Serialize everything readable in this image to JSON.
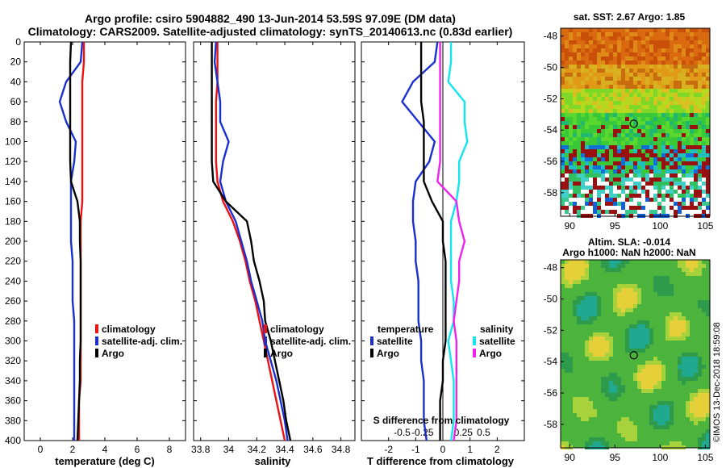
{
  "title": {
    "line1": "Argo profile: csiro 5904882_490 13-Jun-2014 53.59S 97.09E (DM data)",
    "line2": "Climatology: CARS2009. Satellite-adjusted climatology: synTS_20140613.nc (0.83d earlier)"
  },
  "colors": {
    "climatology": "#ee1111",
    "satellite": "#1a2fd0",
    "argo": "#000000",
    "s_satellite": "#11e6ee",
    "s_argo": "#ee22ee"
  },
  "depth_axis": {
    "ticks": [
      "0",
      "20",
      "40",
      "60",
      "80",
      "100",
      "120",
      "140",
      "160",
      "180",
      "200",
      "220",
      "240",
      "260",
      "280",
      "300",
      "320",
      "340",
      "360",
      "380",
      "400"
    ]
  },
  "chart_data": [
    {
      "type": "line",
      "name": "temperature",
      "xlabel": "temperature (deg C)",
      "xlim": [
        -1,
        9
      ],
      "ylim": [
        0,
        400
      ],
      "xticks": [
        0,
        2,
        4,
        6,
        8
      ],
      "xtick_labels": [
        "0",
        "2",
        "4",
        "6",
        "8"
      ],
      "legend": [
        "climatology",
        "satellite-adj. clim.",
        "Argo"
      ],
      "series": [
        {
          "name": "climatology",
          "color_key": "climatology",
          "x": [
            2.7,
            2.7,
            2.6,
            2.6,
            2.6,
            2.6,
            2.6,
            2.6,
            2.6,
            2.5,
            2.5,
            2.5,
            2.5,
            2.5,
            2.5,
            2.5,
            2.5,
            2.5,
            2.4,
            2.4,
            2.4
          ],
          "y": [
            0,
            20,
            40,
            60,
            80,
            100,
            120,
            140,
            160,
            180,
            200,
            220,
            240,
            260,
            280,
            300,
            320,
            340,
            360,
            380,
            400
          ]
        },
        {
          "name": "satellite-adj. clim.",
          "color_key": "satellite",
          "x": [
            2.6,
            2.5,
            1.6,
            1.2,
            1.6,
            2.2,
            2.1,
            1.9,
            1.9,
            1.9,
            1.9,
            2.0,
            2.0,
            2.0,
            2.1,
            2.1,
            2.1,
            2.1,
            2.1,
            2.1,
            2.1
          ],
          "y": [
            0,
            20,
            40,
            60,
            80,
            100,
            120,
            140,
            160,
            180,
            200,
            220,
            240,
            260,
            280,
            300,
            320,
            340,
            360,
            380,
            400
          ]
        },
        {
          "name": "Argo",
          "color_key": "argo",
          "x": [
            1.9,
            1.85,
            1.85,
            1.85,
            1.85,
            1.85,
            1.85,
            1.9,
            2.3,
            2.45,
            2.45,
            2.5,
            2.5,
            2.5,
            2.5,
            2.5,
            2.45,
            2.45,
            2.4,
            2.35,
            2.3
          ],
          "y": [
            0,
            20,
            40,
            60,
            80,
            100,
            120,
            140,
            160,
            180,
            200,
            220,
            240,
            260,
            280,
            300,
            320,
            340,
            360,
            380,
            400
          ]
        }
      ]
    },
    {
      "type": "line",
      "name": "salinity",
      "xlabel": "salinity",
      "xlim": [
        33.75,
        34.9
      ],
      "ylim": [
        0,
        400
      ],
      "xticks": [
        33.8,
        34.0,
        34.2,
        34.4,
        34.6,
        34.8
      ],
      "xtick_labels": [
        "33.8",
        "34",
        "34.2",
        "34.4",
        "34.6",
        "34.8"
      ],
      "legend": [
        "climatology",
        "satellite-adj. clim.",
        "Argo"
      ],
      "series": [
        {
          "name": "climatology",
          "color_key": "climatology",
          "x": [
            33.92,
            33.92,
            33.92,
            33.91,
            33.91,
            33.91,
            33.91,
            33.92,
            33.96,
            34.03,
            34.08,
            34.12,
            34.15,
            34.19,
            34.22,
            34.25,
            34.28,
            34.31,
            34.34,
            34.37,
            34.4
          ],
          "y": [
            0,
            20,
            40,
            60,
            80,
            100,
            120,
            140,
            160,
            180,
            200,
            220,
            240,
            260,
            280,
            300,
            320,
            340,
            360,
            380,
            400
          ]
        },
        {
          "name": "satellite-adj. clim.",
          "color_key": "satellite",
          "x": [
            33.91,
            33.9,
            33.92,
            33.94,
            33.94,
            34.0,
            33.96,
            33.94,
            33.98,
            34.05,
            34.09,
            34.13,
            34.16,
            34.2,
            34.24,
            34.26,
            34.3,
            34.34,
            34.37,
            34.4,
            34.42
          ],
          "y": [
            0,
            20,
            40,
            60,
            80,
            100,
            120,
            140,
            160,
            180,
            200,
            220,
            240,
            260,
            280,
            300,
            320,
            340,
            360,
            380,
            400
          ]
        },
        {
          "name": "Argo",
          "color_key": "argo",
          "x": [
            33.88,
            33.88,
            33.88,
            33.88,
            33.88,
            33.88,
            33.88,
            33.89,
            33.98,
            34.13,
            34.16,
            34.18,
            34.22,
            34.25,
            34.26,
            34.3,
            34.33,
            34.36,
            34.39,
            34.41,
            34.44
          ],
          "y": [
            0,
            20,
            40,
            60,
            80,
            100,
            120,
            140,
            160,
            180,
            200,
            220,
            240,
            260,
            280,
            300,
            320,
            340,
            360,
            380,
            400
          ]
        }
      ]
    },
    {
      "type": "line",
      "name": "differences",
      "xlabel": "T difference from climatology",
      "xlabel_top": "S difference from climatology",
      "xlim": [
        -3,
        3
      ],
      "ylim": [
        0,
        400
      ],
      "xticks": [
        -2,
        -1,
        0,
        1,
        2
      ],
      "xtick_labels": [
        "-2",
        "-1",
        "0",
        "1",
        "2"
      ],
      "s_ticks_at_t": [
        -1.5,
        -0.75,
        0.75,
        1.5
      ],
      "s_tick_labels": [
        "-0.5",
        "-0.25",
        "0.25",
        "0.5"
      ],
      "legend_temperature_title": "temperature",
      "legend_temperature": [
        "satellite",
        "Argo"
      ],
      "legend_salinity_title": "salinity",
      "legend_salinity": [
        "satellite",
        "Argo"
      ],
      "series": [
        {
          "name": "T satellite",
          "color_key": "satellite",
          "x": [
            -0.2,
            -0.3,
            -1.1,
            -1.5,
            -0.9,
            -0.3,
            -0.5,
            -1.0,
            -1.1,
            -1.1,
            -1.0,
            -1.0,
            -0.9,
            -0.9,
            -0.9,
            -0.8,
            -0.8,
            -0.7,
            -0.7,
            -0.7,
            -0.6
          ],
          "y": [
            0,
            20,
            40,
            60,
            80,
            100,
            120,
            140,
            160,
            180,
            200,
            220,
            240,
            260,
            280,
            300,
            320,
            340,
            360,
            380,
            400
          ]
        },
        {
          "name": "T Argo",
          "color_key": "argo",
          "x": [
            -0.8,
            -0.8,
            -0.8,
            -0.8,
            -0.7,
            -0.7,
            -0.7,
            -0.7,
            -0.4,
            0.0,
            0.0,
            0.1,
            0.1,
            0.1,
            0.1,
            0.1,
            0.0,
            0.0,
            -0.1,
            -0.1,
            -0.1
          ],
          "y": [
            0,
            20,
            40,
            60,
            80,
            100,
            120,
            140,
            160,
            180,
            200,
            220,
            240,
            260,
            280,
            300,
            320,
            340,
            360,
            380,
            400
          ]
        },
        {
          "name": "S satellite",
          "color_key": "s_satellite",
          "x": [
            0.3,
            0.3,
            0.2,
            0.8,
            0.8,
            0.9,
            0.6,
            0.6,
            0.5,
            0.3,
            0.3,
            0.3,
            0.3,
            0.4,
            0.4,
            0.2,
            0.3,
            0.4,
            0.4,
            0.4,
            0.3
          ],
          "y": [
            0,
            20,
            40,
            60,
            80,
            100,
            120,
            140,
            160,
            180,
            200,
            220,
            240,
            260,
            280,
            300,
            320,
            340,
            360,
            380,
            400
          ]
        },
        {
          "name": "S Argo",
          "color_key": "s_argo",
          "x": [
            -0.1,
            -0.1,
            -0.1,
            -0.1,
            -0.1,
            -0.1,
            -0.1,
            -0.2,
            0.5,
            0.6,
            0.8,
            0.6,
            0.6,
            0.5,
            0.4,
            0.5,
            0.5,
            0.5,
            0.5,
            0.5,
            0.4
          ],
          "y": [
            0,
            20,
            40,
            60,
            80,
            100,
            120,
            140,
            160,
            180,
            200,
            220,
            240,
            260,
            280,
            300,
            320,
            340,
            360,
            380,
            400
          ]
        }
      ]
    },
    {
      "type": "heatmap",
      "name": "sst-map",
      "title": "sat. SST: 2.67 Argo: 1.85",
      "xlim": [
        89,
        105.5
      ],
      "ylim": [
        -59.5,
        -47.5
      ],
      "xticks": [
        90,
        95,
        100,
        105
      ],
      "xtick_labels": [
        "90",
        "95",
        "100",
        "105"
      ],
      "yticks": [
        -48,
        -50,
        -52,
        -54,
        -56,
        -58
      ],
      "ytick_labels": [
        "-48",
        "-50",
        "-52",
        "-54",
        "-56",
        "-58"
      ],
      "marker": {
        "lon": 97.09,
        "lat": -53.59
      }
    },
    {
      "type": "heatmap",
      "name": "sla-map",
      "title": "Altim. SLA: -0.014",
      "subtitle": "Argo h1000: NaN h2000: NaN",
      "xlim": [
        89,
        105.5
      ],
      "ylim": [
        -59.5,
        -47.5
      ],
      "xticks": [
        90,
        95,
        100,
        105
      ],
      "xtick_labels": [
        "90",
        "95",
        "100",
        "105"
      ],
      "yticks": [
        -48,
        -50,
        -52,
        -54,
        -56,
        -58
      ],
      "ytick_labels": [
        "-48",
        "-50",
        "-52",
        "-54",
        "-56",
        "-58"
      ],
      "marker": {
        "lon": 97.09,
        "lat": -53.59
      }
    }
  ],
  "watermark": "©IMOS 13-Dec-2018 18:59:08"
}
